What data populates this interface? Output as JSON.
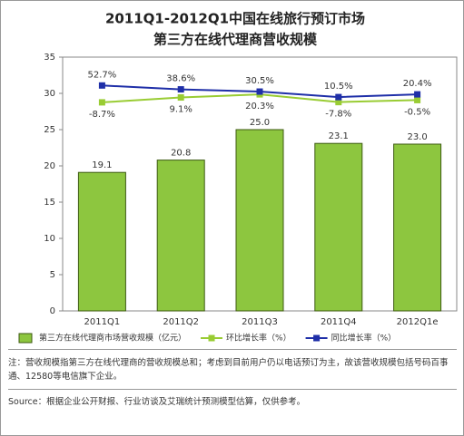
{
  "chart_data": {
    "type": "bar",
    "title": "2011Q1-2012Q1中国在线旅行预订市场",
    "subtitle": "第三方在线代理商营收规模",
    "categories": [
      "2011Q1",
      "2011Q2",
      "2011Q3",
      "2011Q4",
      "2012Q1e"
    ],
    "series": [
      {
        "name": "第三方在线代理商市场营收规模（亿元）",
        "type": "bar",
        "color": "#8dc63f",
        "values": [
          19.1,
          20.8,
          25.0,
          23.1,
          23.0
        ],
        "value_labels": [
          "19.1",
          "20.8",
          "25.0",
          "23.1",
          "23.0"
        ]
      },
      {
        "name": "环比增长率（%）",
        "type": "line",
        "axis": "y2",
        "color": "#99cc33",
        "values": [
          -8.7,
          9.1,
          20.3,
          -7.8,
          -0.5
        ],
        "value_labels": [
          "-8.7%",
          "9.1%",
          "20.3%",
          "-7.8%",
          "-0.5%"
        ]
      },
      {
        "name": "同比增长率（%）",
        "type": "line",
        "axis": "y2",
        "color": "#1f2fa8",
        "values": [
          52.7,
          38.6,
          30.5,
          10.5,
          20.4
        ],
        "value_labels": [
          "52.7%",
          "38.6%",
          "30.5%",
          "10.5%",
          "20.4%"
        ]
      }
    ],
    "ylim": [
      0,
      35
    ],
    "yticks": [
      0,
      5,
      10,
      15,
      20,
      25,
      30,
      35
    ],
    "y2lim": [
      -768,
      156
    ],
    "note": "注：营收规模指第三方在线代理商的营收规模总和；考虑到目前用户仍以电话预订为主，故该营收规模包括号码百事通、12580等电信旗下企业。",
    "source": "Source：根据企业公开财报、行业访谈及艾瑞统计预测模型估算，仅供参考。"
  }
}
